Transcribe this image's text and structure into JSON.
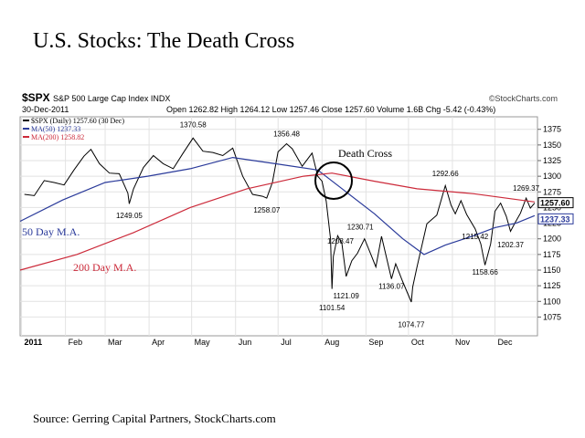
{
  "title": "U.S. Stocks: The Death Cross",
  "source": "Source: Gerring Capital Partners, StockCharts.com",
  "chart_data": {
    "type": "line",
    "symbol": "$SPX",
    "name": "S&P 500 Large Cap Index INDX",
    "credit": "©StockCharts.com",
    "date": "30-Dec-2011",
    "quote": "Open 1262.82  High 1264.12  Low 1257.46  Close 1257.60  Volume 1.6B  Chg -5.42 (-0.43%)",
    "close_box": "1257.60",
    "ma50_box": "1237.33",
    "annotations": [
      "Death Cross",
      "50 Day M.A.",
      "200 Day M.A."
    ],
    "xlim": [
      0,
      365
    ],
    "xticks": [
      {
        "value": 1,
        "label": "2011"
      },
      {
        "value": 32,
        "label": "Feb"
      },
      {
        "value": 60,
        "label": "Mar"
      },
      {
        "value": 91,
        "label": "Apr"
      },
      {
        "value": 121,
        "label": "May"
      },
      {
        "value": 152,
        "label": "Jun"
      },
      {
        "value": 182,
        "label": "Jul"
      },
      {
        "value": 213,
        "label": "Aug"
      },
      {
        "value": 244,
        "label": "Sep"
      },
      {
        "value": 274,
        "label": "Oct"
      },
      {
        "value": 305,
        "label": "Nov"
      },
      {
        "value": 335,
        "label": "Dec"
      }
    ],
    "ylim": [
      1045,
      1395
    ],
    "yticks": [
      1075,
      1100,
      1125,
      1150,
      1175,
      1200,
      1225,
      1250,
      1275,
      1300,
      1325,
      1350,
      1375
    ],
    "grid": true,
    "series": [
      {
        "name": "$SPX (Daily) 1257.60 (30 Dec)",
        "color": "#000000",
        "x": [
          3,
          10,
          17,
          24,
          31,
          38,
          45,
          50,
          56,
          63,
          70,
          76,
          77,
          80,
          87,
          94,
          101,
          108,
          115,
          122,
          129,
          136,
          143,
          150,
          157,
          164,
          171,
          174,
          178,
          182,
          188,
          192,
          199,
          206,
          210,
          213,
          216,
          219,
          220,
          221,
          224,
          227,
          230,
          234,
          238,
          243,
          248,
          251,
          255,
          262,
          265,
          270,
          276,
          277,
          280,
          287,
          294,
          300,
          304,
          307,
          311,
          315,
          321,
          325,
          328,
          332,
          335,
          339,
          343,
          346,
          349,
          353,
          357,
          360,
          363
        ],
        "values": [
          1271,
          1269,
          1293,
          1290,
          1286,
          1310,
          1332,
          1343,
          1320,
          1305,
          1304,
          1273,
          1256,
          1280,
          1314,
          1333,
          1320,
          1312,
          1337,
          1361,
          1340,
          1338,
          1333,
          1345,
          1300,
          1271,
          1268,
          1265,
          1290,
          1339,
          1352,
          1344,
          1316,
          1337,
          1300,
          1292,
          1260,
          1200,
          1120,
          1172,
          1205,
          1193,
          1140,
          1165,
          1177,
          1200,
          1172,
          1155,
          1204,
          1136,
          1160,
          1131,
          1099,
          1123,
          1155,
          1224,
          1238,
          1285,
          1254,
          1240,
          1261,
          1239,
          1216,
          1192,
          1158,
          1192,
          1244,
          1257,
          1236,
          1212,
          1225,
          1241,
          1265,
          1249,
          1257
        ]
      },
      {
        "name": "MA(50) 1237.33",
        "color": "#2a3a9a",
        "x": [
          0,
          30,
          60,
          90,
          120,
          150,
          180,
          210,
          230,
          250,
          270,
          285,
          300,
          320,
          335,
          350,
          363
        ],
        "values": [
          1228,
          1262,
          1290,
          1300,
          1312,
          1330,
          1320,
          1310,
          1275,
          1240,
          1200,
          1175,
          1190,
          1205,
          1218,
          1225,
          1237
        ]
      },
      {
        "name": "MA(200) 1258.82",
        "color": "#cc2a3a",
        "x": [
          0,
          40,
          80,
          120,
          160,
          200,
          220,
          250,
          280,
          320,
          363
        ],
        "values": [
          1150,
          1175,
          1210,
          1250,
          1280,
          1300,
          1305,
          1292,
          1280,
          1272,
          1259
        ]
      }
    ],
    "price_labels": [
      {
        "x": 122,
        "value": 1370.58,
        "anchor": "top"
      },
      {
        "x": 188,
        "value": 1356.48,
        "anchor": "top"
      },
      {
        "x": 77,
        "value": 1249.05,
        "anchor": "bottom"
      },
      {
        "x": 174,
        "value": 1258.07,
        "anchor": "bottom"
      },
      {
        "x": 226,
        "value": 1208.47,
        "anchor": "bottom"
      },
      {
        "x": 240,
        "value": 1230.71,
        "anchor": "bottom"
      },
      {
        "x": 220,
        "value": 1101.54,
        "anchor": "bottom"
      },
      {
        "x": 230,
        "value": 1121.09,
        "anchor": "bottom"
      },
      {
        "x": 262,
        "value": 1136.07,
        "anchor": "bottom"
      },
      {
        "x": 276,
        "value": 1074.77,
        "anchor": "bottom"
      },
      {
        "x": 300,
        "value": 1292.66,
        "anchor": "top"
      },
      {
        "x": 321,
        "value": 1215.42,
        "anchor": "bottom"
      },
      {
        "x": 328,
        "value": 1158.66,
        "anchor": "bottom"
      },
      {
        "x": 346,
        "value": 1202.37,
        "anchor": "bottom"
      },
      {
        "x": 357,
        "value": 1269.37,
        "anchor": "top"
      }
    ]
  }
}
